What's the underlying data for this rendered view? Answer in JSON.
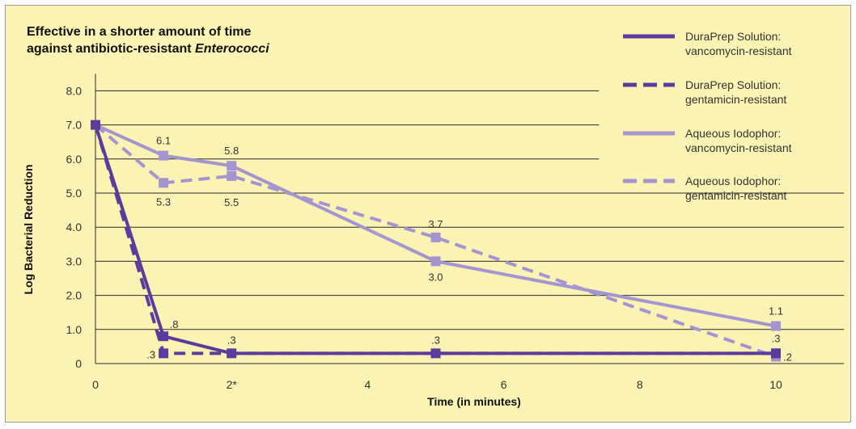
{
  "chart_data": {
    "type": "line",
    "title_line1": "Effective in a shorter amount of time",
    "title_line2_prefix": "against antibiotic-resistant ",
    "title_line2_italic": "Enterococci",
    "xlabel": "Time (in minutes)",
    "ylabel": "Log Bacterial Reduction",
    "xlim": [
      0,
      11
    ],
    "ylim": [
      0,
      8.5
    ],
    "x_ticks": [
      {
        "value": 0,
        "label": "0"
      },
      {
        "value": 2,
        "label": "2*"
      },
      {
        "value": 4,
        "label": "4"
      },
      {
        "value": 6,
        "label": "6"
      },
      {
        "value": 8,
        "label": "8"
      },
      {
        "value": 10,
        "label": "10"
      }
    ],
    "y_ticks": [
      {
        "value": 0,
        "label": "0"
      },
      {
        "value": 1,
        "label": "1.0"
      },
      {
        "value": 2,
        "label": "2.0"
      },
      {
        "value": 3,
        "label": "3.0"
      },
      {
        "value": 4,
        "label": "4.0"
      },
      {
        "value": 5,
        "label": "5.0"
      },
      {
        "value": 6,
        "label": "6.0"
      },
      {
        "value": 7,
        "label": "7.0"
      },
      {
        "value": 8,
        "label": "8.0"
      }
    ],
    "grid": "horizontal",
    "legend": "top-right",
    "series": [
      {
        "name_line1": "DuraPrep Solution:",
        "name_line2": "vancomycin-resistant",
        "color": "#5b3b9c",
        "dashed": false,
        "x": [
          0,
          1,
          2,
          5,
          10
        ],
        "y": [
          7.0,
          0.8,
          0.3,
          0.3,
          0.3
        ],
        "labels": [
          "",
          ".8",
          ".3",
          ".3",
          ".3"
        ]
      },
      {
        "name_line1": "DuraPrep Solution:",
        "name_line2": "gentamicin-resistant",
        "color": "#5b3b9c",
        "dashed": true,
        "x": [
          0,
          1,
          10
        ],
        "y": [
          7.0,
          0.3,
          0.3
        ],
        "labels": [
          "",
          ".3",
          ""
        ]
      },
      {
        "name_line1": "Aqueous Iodophor:",
        "name_line2": "vancomycin-resistant",
        "color": "#a494d0",
        "dashed": false,
        "x": [
          0,
          1,
          2,
          5,
          10
        ],
        "y": [
          7.0,
          6.1,
          5.8,
          3.0,
          1.1
        ],
        "labels": [
          "",
          "6.1",
          "5.8",
          "3.0",
          "1.1"
        ]
      },
      {
        "name_line1": "Aqueous Iodophor:",
        "name_line2": "gentamicin-resistant",
        "color": "#a494d0",
        "dashed": true,
        "x": [
          0,
          1,
          2,
          5,
          10
        ],
        "y": [
          7.0,
          5.3,
          5.5,
          3.7,
          0.2
        ],
        "labels": [
          "",
          "5.3",
          "5.5",
          "3.7",
          ".2"
        ]
      }
    ]
  }
}
